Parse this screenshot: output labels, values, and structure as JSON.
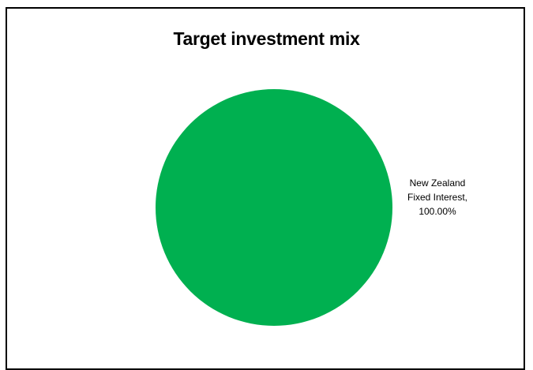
{
  "chart_data": {
    "type": "pie",
    "title": "Target investment mix",
    "slices": [
      {
        "label": "New Zealand Fixed Interest",
        "value": 100.0,
        "display": "100.00%",
        "color": "#00b050"
      }
    ],
    "legend": "none"
  },
  "labels": {
    "slice_0_line1": "New Zealand",
    "slice_0_line2": "Fixed Interest,",
    "slice_0_line3": "100.00%"
  }
}
